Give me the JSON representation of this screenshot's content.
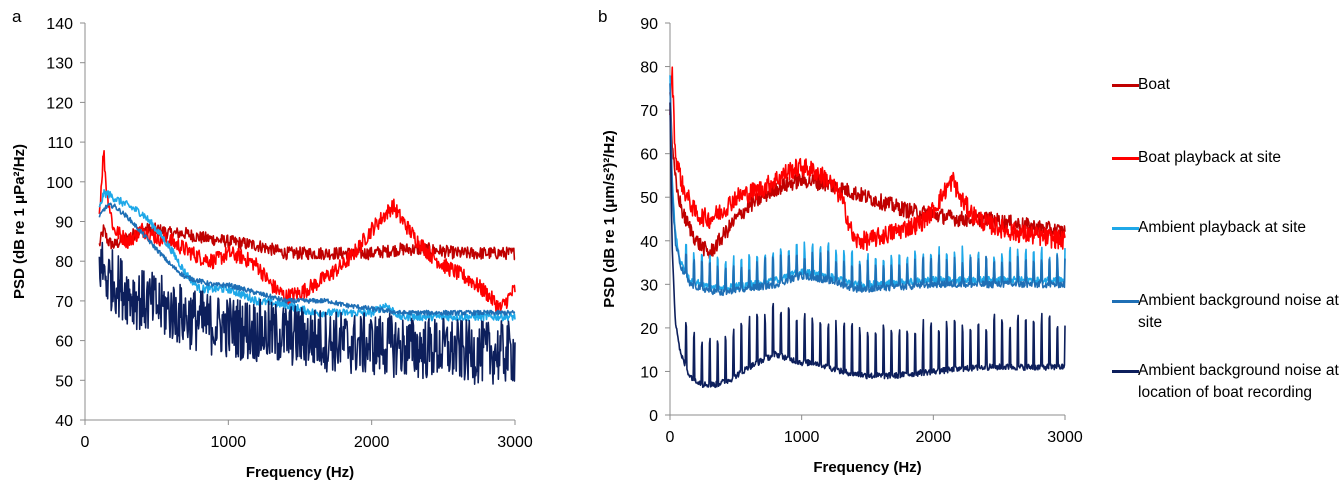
{
  "colors": {
    "boat": "#c00000",
    "boat_playback": "#ff0000",
    "ambient_playback": "#1fa8e8",
    "ambient_background": "#1f6fb5",
    "ambient_remote": "#0d1f5c"
  },
  "legend": [
    {
      "series": "Boat",
      "color": "#c00000"
    },
    {
      "series": "Boat playback at site",
      "color": "#ff0000"
    },
    {
      "series": "Ambient playback at site",
      "color": "#1fa8e8"
    },
    {
      "series": "Ambient background noise at site",
      "color": "#1f6fb5"
    },
    {
      "series": "Ambient background noise at location of boat recording",
      "color": "#0d1f5c"
    }
  ],
  "chart_data": [
    {
      "panel_label": "a",
      "type": "line",
      "xlabel": "Frequency (Hz)",
      "ylabel": "PSD (dB re 1 μPa²/Hz)",
      "xlim": [
        0,
        3000
      ],
      "ylim": [
        40,
        140
      ],
      "xticks": [
        0,
        1000,
        2000,
        3000
      ],
      "yticks": [
        40,
        50,
        60,
        70,
        80,
        90,
        100,
        110,
        120,
        130,
        140
      ],
      "grid": false,
      "legend_position": "right",
      "series": [
        {
          "name": "Boat",
          "color": "#c00000",
          "noise": 1.6,
          "spike_every": 0,
          "spike_height": 0,
          "x": [
            100,
            130,
            160,
            200,
            300,
            400,
            500,
            600,
            700,
            800,
            1000,
            1200,
            1400,
            1600,
            1800,
            2000,
            2200,
            2400,
            2600,
            2800,
            3000
          ],
          "y": [
            84,
            88,
            85,
            84,
            86,
            88,
            88,
            87,
            87,
            86,
            85,
            84,
            82,
            82,
            82,
            82,
            83,
            83,
            82,
            82,
            82
          ]
        },
        {
          "name": "Boat playback at site",
          "color": "#ff0000",
          "noise": 2.0,
          "spike_every": 0,
          "spike_height": 0,
          "x": [
            100,
            130,
            150,
            200,
            300,
            400,
            500,
            600,
            700,
            800,
            900,
            1000,
            1100,
            1200,
            1300,
            1400,
            1500,
            1600,
            1800,
            1900,
            2000,
            2100,
            2150,
            2200,
            2300,
            2400,
            2500,
            2600,
            2700,
            2800,
            2900,
            3000
          ],
          "y": [
            92,
            108,
            98,
            88,
            85,
            88,
            86,
            85,
            83,
            81,
            80,
            82,
            81,
            79,
            74,
            71,
            72,
            74,
            79,
            83,
            88,
            92,
            94,
            91,
            86,
            82,
            79,
            77,
            75,
            72,
            68,
            73
          ]
        },
        {
          "name": "Ambient playback at site",
          "color": "#1fa8e8",
          "noise": 1.0,
          "spike_every": 0,
          "spike_height": 0,
          "x": [
            100,
            130,
            160,
            200,
            300,
            400,
            500,
            600,
            700,
            800,
            900,
            1000,
            1200,
            1400,
            1600,
            1800,
            2000,
            2100,
            2200,
            2400,
            2600,
            2800,
            3000
          ],
          "y": [
            93,
            97,
            97,
            96,
            94,
            92,
            88,
            83,
            77,
            73,
            73,
            73,
            70,
            69,
            67,
            67,
            67,
            69,
            66,
            66,
            66,
            66,
            66
          ]
        },
        {
          "name": "Ambient background noise at site",
          "color": "#1f6fb5",
          "noise": 0.6,
          "spike_every": 0,
          "spike_height": 0,
          "x": [
            100,
            130,
            160,
            200,
            300,
            400,
            500,
            600,
            700,
            800,
            900,
            1000,
            1100,
            1200,
            1300,
            1400,
            1500,
            1600,
            1700,
            1800,
            2000,
            2200,
            2400,
            2600,
            2800,
            3000
          ],
          "y": [
            91,
            93,
            94,
            94,
            91,
            87,
            83,
            79,
            76,
            75,
            74,
            74,
            73,
            72,
            71,
            70,
            70,
            70,
            70,
            69,
            68,
            67,
            67,
            67,
            67,
            67
          ]
        },
        {
          "name": "Ambient background noise at location of boat recording",
          "color": "#0d1f5c",
          "noise": 8.0,
          "spike_every": 0,
          "spike_height": 0,
          "x": [
            100,
            150,
            200,
            300,
            400,
            500,
            700,
            900,
            1100,
            1300,
            1500,
            1700,
            1900,
            2100,
            2300,
            2500,
            2700,
            2900,
            3000
          ],
          "y": [
            80,
            76,
            75,
            72,
            70,
            69,
            66,
            64,
            63,
            62,
            61,
            60,
            59,
            59,
            58,
            58,
            57,
            57,
            57
          ]
        }
      ]
    },
    {
      "panel_label": "b",
      "type": "line",
      "xlabel": "Frequency (Hz)",
      "ylabel": "PSD (dB re 1 (μm/s²)²/Hz)",
      "xlim": [
        0,
        3000
      ],
      "ylim": [
        0,
        90
      ],
      "xticks": [
        0,
        1000,
        2000,
        3000
      ],
      "yticks": [
        0,
        10,
        20,
        30,
        40,
        50,
        60,
        70,
        80,
        90
      ],
      "grid": false,
      "legend_position": "right",
      "series": [
        {
          "name": "Boat",
          "color": "#c00000",
          "noise": 1.8,
          "spike_every": 0,
          "spike_height": 0,
          "x": [
            0,
            20,
            50,
            100,
            200,
            300,
            400,
            500,
            600,
            700,
            800,
            1000,
            1200,
            1400,
            1600,
            1800,
            2000,
            2200,
            2400,
            2600,
            2800,
            3000
          ],
          "y": [
            75,
            60,
            52,
            46,
            40,
            37,
            41,
            45,
            48,
            50,
            52,
            54,
            53,
            51,
            49,
            47,
            46,
            45,
            45,
            44,
            43,
            42
          ]
        },
        {
          "name": "Boat playback at site",
          "color": "#ff0000",
          "noise": 2.2,
          "spike_every": 0,
          "spike_height": 0,
          "x": [
            0,
            15,
            40,
            100,
            200,
            300,
            400,
            500,
            600,
            700,
            800,
            900,
            1000,
            1100,
            1200,
            1300,
            1400,
            1500,
            1700,
            1900,
            2000,
            2100,
            2150,
            2200,
            2300,
            2400,
            2500,
            2600,
            2800,
            3000
          ],
          "y": [
            70,
            80,
            60,
            52,
            46,
            45,
            47,
            50,
            51,
            52,
            54,
            56,
            57,
            56,
            54,
            50,
            40,
            40,
            42,
            44,
            47,
            52,
            54,
            50,
            46,
            44,
            43,
            42,
            41,
            40
          ]
        },
        {
          "name": "Ambient playback at site",
          "color": "#1fa8e8",
          "noise": 0.8,
          "spike_every": 60,
          "spike_height": 7,
          "x": [
            0,
            15,
            40,
            80,
            150,
            250,
            400,
            600,
            800,
            1000,
            1200,
            1400,
            1600,
            2000,
            2400,
            2800,
            3000
          ],
          "y": [
            78,
            55,
            42,
            35,
            31,
            30,
            29,
            30,
            31,
            33,
            32,
            30,
            30,
            31,
            31,
            31,
            31
          ]
        },
        {
          "name": "Ambient background noise at site",
          "color": "#1f6fb5",
          "noise": 0.8,
          "spike_every": 60,
          "spike_height": 6,
          "x": [
            0,
            15,
            40,
            80,
            150,
            250,
            400,
            600,
            800,
            1000,
            1200,
            1400,
            1600,
            2000,
            2400,
            2800,
            3000
          ],
          "y": [
            76,
            52,
            40,
            34,
            30,
            29,
            28,
            29,
            30,
            32,
            31,
            29,
            29,
            30,
            30,
            30,
            30
          ]
        },
        {
          "name": "Ambient background noise at location of boat recording",
          "color": "#0d1f5c",
          "noise": 0.7,
          "spike_every": 60,
          "spike_height": 12,
          "x": [
            0,
            15,
            40,
            80,
            150,
            250,
            350,
            450,
            600,
            800,
            900,
            1000,
            1100,
            1300,
            1500,
            1700,
            2000,
            2400,
            2800,
            3000
          ],
          "y": [
            72,
            40,
            22,
            14,
            9,
            7,
            7,
            8,
            11,
            14,
            13,
            12,
            12,
            10,
            9,
            9,
            10,
            11,
            11,
            11
          ]
        }
      ]
    }
  ]
}
